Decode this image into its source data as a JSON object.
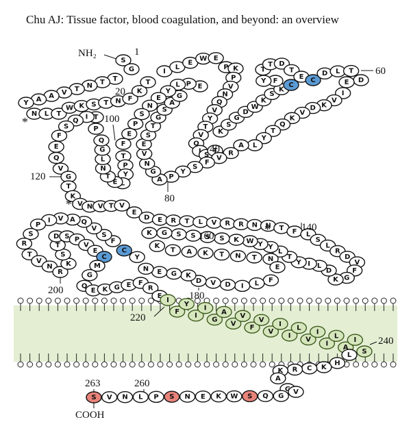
{
  "title": "Chu AJ: Tissue factor, blood coagulation, and beyond: an overview",
  "residues": [
    "S",
    "G",
    "T",
    "T",
    "N",
    "T",
    "V",
    "A",
    "A",
    "Y",
    "N",
    "L",
    "T",
    "W",
    "K",
    "S",
    "T",
    "N",
    "F",
    "K",
    "T",
    "I",
    "L",
    "E",
    "W",
    "E",
    "P",
    "K",
    "P",
    "V",
    "N",
    "Q",
    "V",
    "Y",
    "T",
    "V",
    "Q",
    "I",
    "S",
    "T",
    "K",
    "S",
    "G",
    "D",
    "W",
    "K",
    "S",
    "K",
    {
      "aa": "C",
      "fill": "#5b9bd5"
    },
    "F",
    "Y",
    "T",
    "T",
    "D",
    "T",
    "E",
    {
      "aa": "C",
      "fill": "#5b9bd5"
    },
    "D",
    "L",
    "T",
    "D",
    "E",
    "I",
    "V",
    "K",
    "D",
    "V",
    "K",
    "Q",
    "T",
    "Y",
    "L",
    "A",
    "R",
    "V",
    "F",
    "S",
    "Y",
    "P",
    "A",
    "G",
    "N",
    "V",
    "E",
    "S",
    "T",
    "G",
    "S",
    "A",
    "G",
    "E",
    "P",
    "L",
    "Y",
    "E",
    "N",
    "S",
    "P",
    "E",
    "F",
    "T",
    "P",
    "Y",
    "L",
    "E",
    "T",
    "N",
    "L",
    "G",
    "Q",
    "P",
    "T",
    "I",
    "Q",
    "S",
    "F",
    "E",
    "Q",
    "V",
    "G",
    "T",
    "K",
    "V",
    "N",
    "V",
    "T",
    "V",
    "E",
    "D",
    "E",
    "R",
    "T",
    "L",
    "V",
    "R",
    "R",
    "N",
    "N",
    "T",
    "F",
    "L",
    "S",
    "L",
    "R",
    "D",
    "V",
    "F",
    "G",
    "K",
    "D",
    "L",
    "I",
    "Y",
    "T",
    "L",
    "Y",
    "Y",
    "W",
    "K",
    "S",
    "S",
    "S",
    "S",
    "G",
    "K",
    "K",
    "T",
    "A",
    "K",
    "T",
    "N",
    "T",
    "N",
    "E",
    "F",
    "L",
    "I",
    "D",
    "V",
    "D",
    "K",
    "G",
    "E",
    "N",
    "Y",
    {
      "aa": "C",
      "fill": "#5b9bd5"
    },
    "F",
    "S",
    "V",
    "Q",
    "A",
    "V",
    "I",
    "P",
    "S",
    "R",
    "T",
    "V",
    "N",
    "R",
    "K",
    "S",
    "T",
    "D",
    "S",
    "P",
    "V",
    "E",
    {
      "aa": "C",
      "fill": "#5b9bd5"
    },
    "M",
    "G",
    "Q",
    "E",
    "K",
    "G",
    "E",
    "F",
    "R",
    "E",
    "I",
    "F",
    "Y",
    "I",
    "I",
    "G",
    "A",
    "V",
    "V",
    "F",
    "V",
    "V",
    "I",
    "I",
    "L",
    "V",
    "I",
    "I",
    "L",
    "A",
    "I",
    "S",
    "L",
    "H",
    "K",
    "C",
    "R",
    "K",
    "A",
    "G",
    "V",
    "G",
    "Q",
    {
      "aa": "S",
      "fill": "#e8837a"
    },
    "W",
    "K",
    "E",
    "N",
    {
      "aa": "S",
      "fill": "#e8837a"
    },
    "P",
    "L",
    "N",
    "V",
    {
      "aa": "S",
      "fill": "#e8837a"
    }
  ],
  "labels": {
    "nh2": "NH₂",
    "cooh": "COOH",
    "numbers": [
      "1",
      "20",
      "40",
      "60",
      "80",
      "100",
      "120",
      "140",
      "160",
      "180",
      "200",
      "220",
      "240",
      "260",
      "263"
    ],
    "asterisks": [
      "*",
      "*",
      "*"
    ]
  }
}
